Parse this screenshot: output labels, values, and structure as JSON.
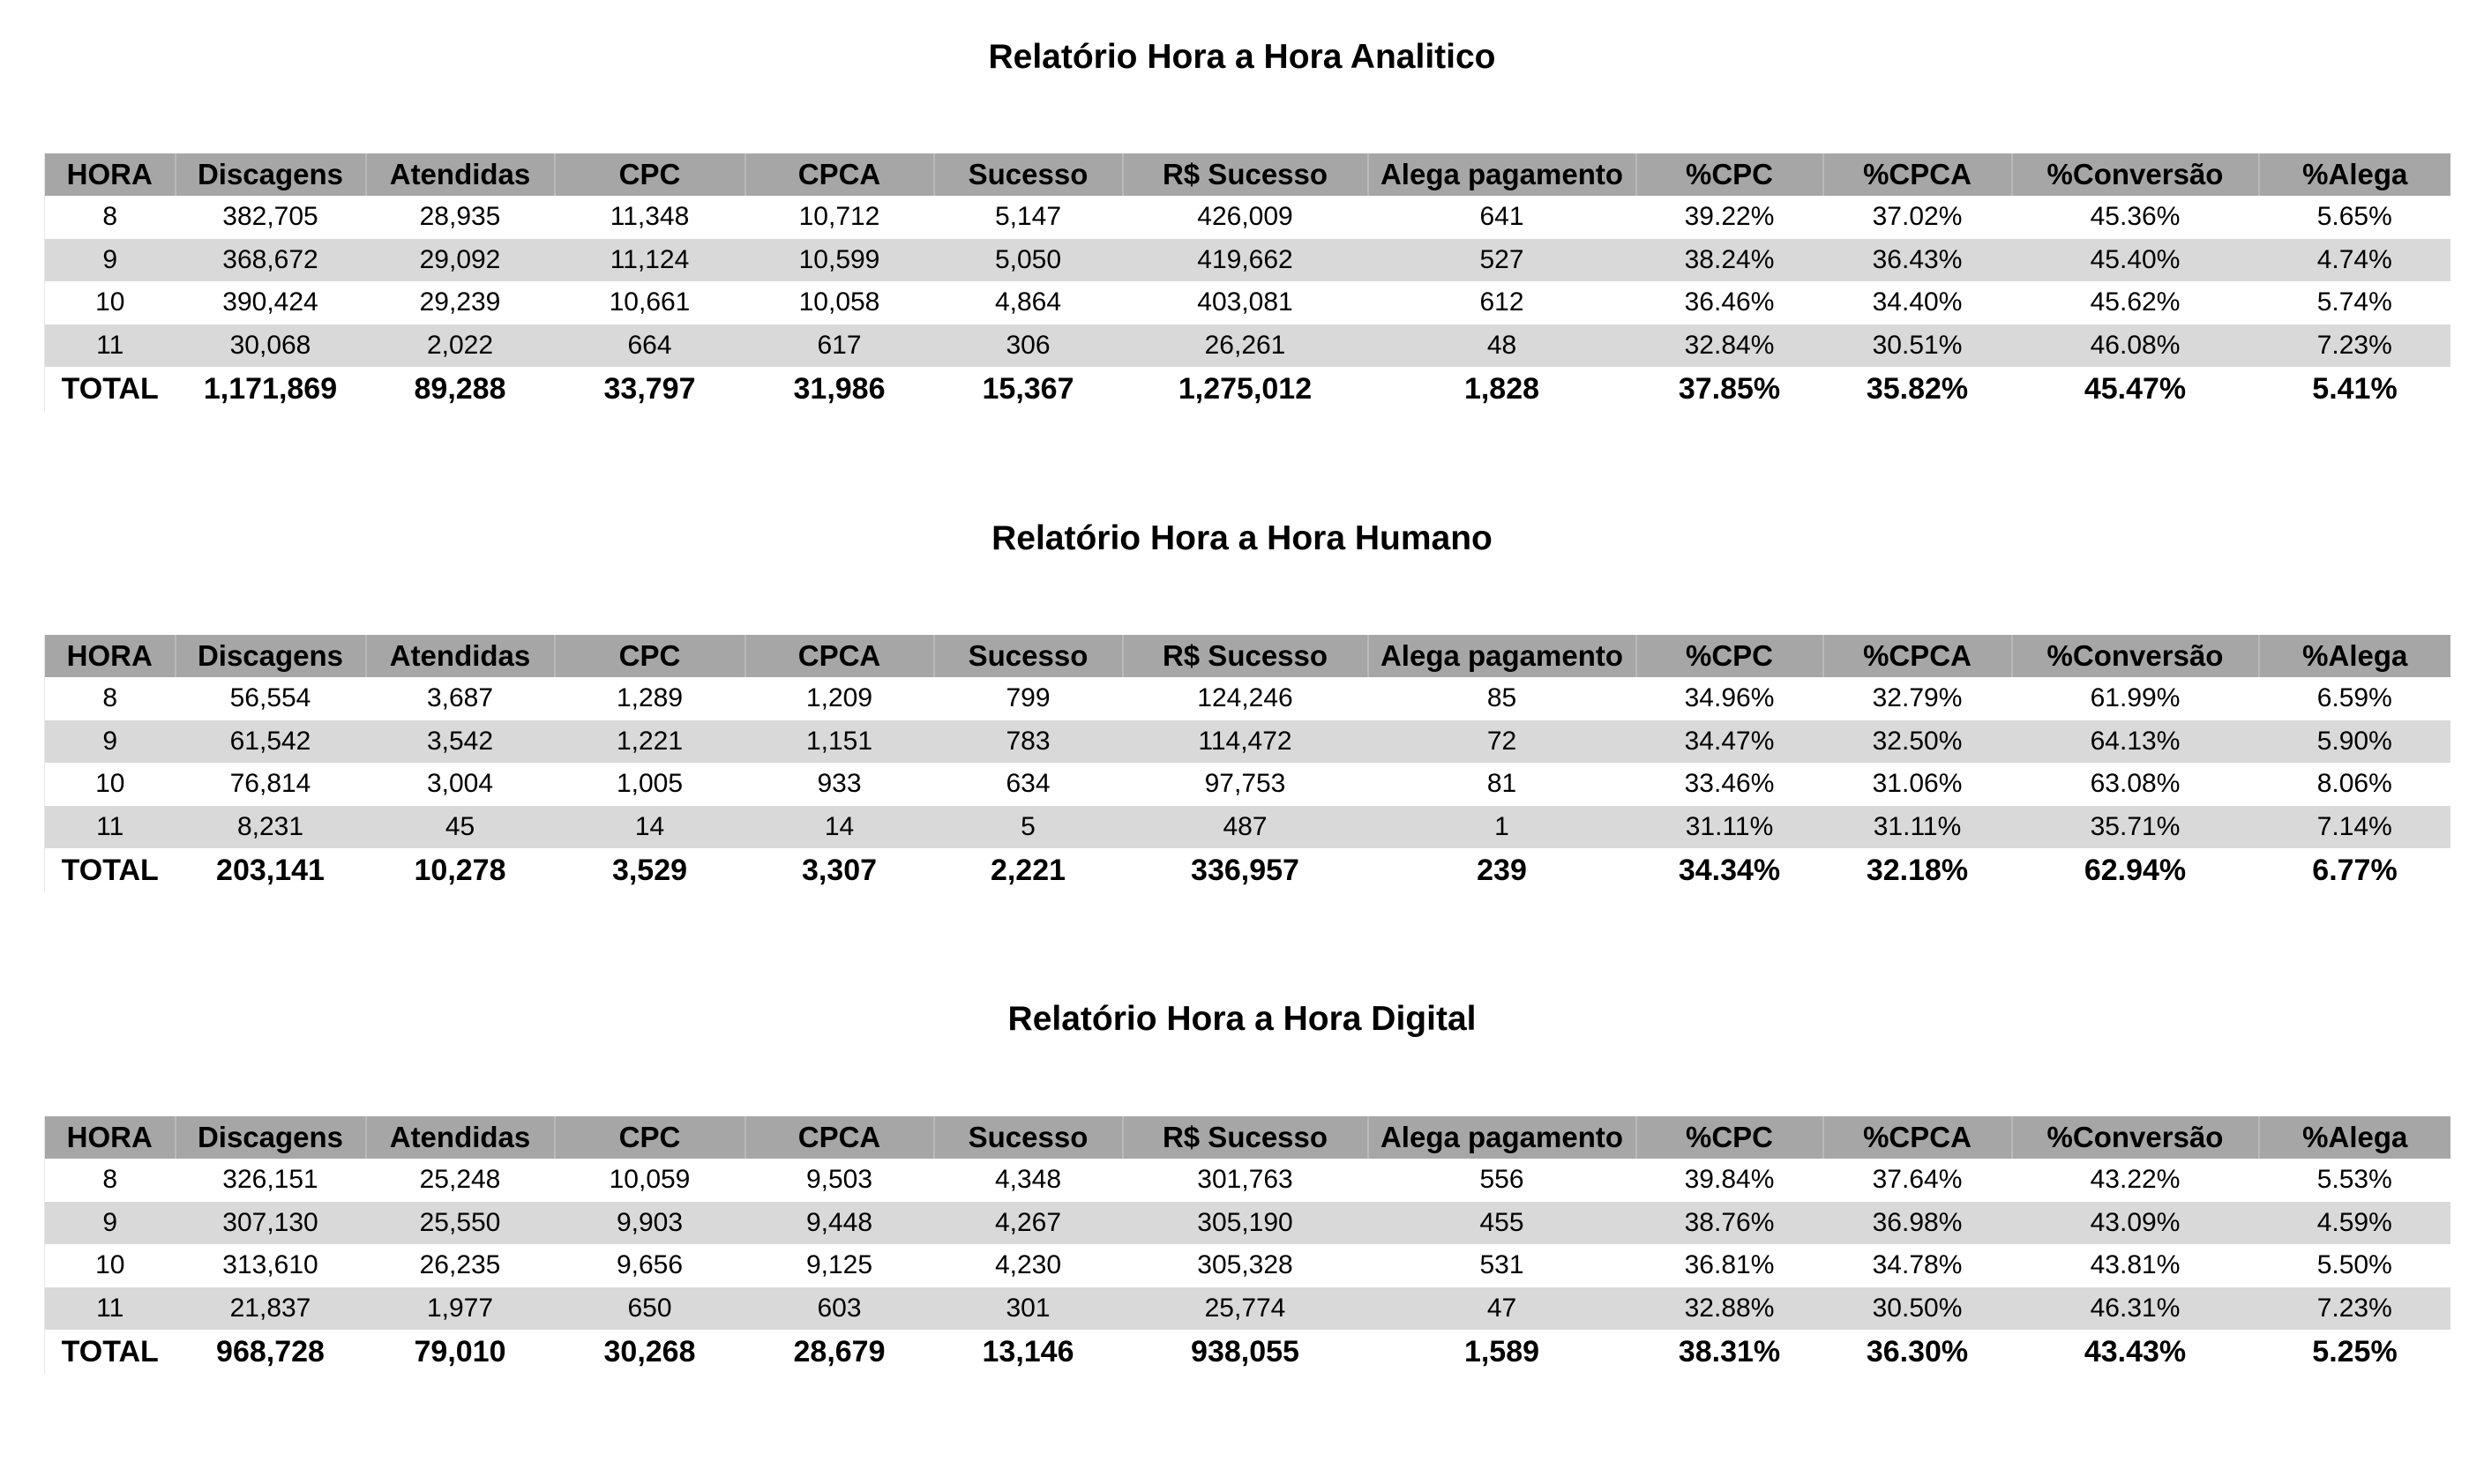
{
  "columns": [
    "HORA",
    "Discagens",
    "Atendidas",
    "CPC",
    "CPCA",
    "Sucesso",
    "R$ Sucesso",
    "Alega pagamento",
    "%CPC",
    "%CPCA",
    "%Conversão",
    "%Alega"
  ],
  "reports": [
    {
      "title": "Relatório Hora a Hora Analitico",
      "rows": [
        [
          "8",
          "382,705",
          "28,935",
          "11,348",
          "10,712",
          "5,147",
          "426,009",
          "641",
          "39.22%",
          "37.02%",
          "45.36%",
          "5.65%"
        ],
        [
          "9",
          "368,672",
          "29,092",
          "11,124",
          "10,599",
          "5,050",
          "419,662",
          "527",
          "38.24%",
          "36.43%",
          "45.40%",
          "4.74%"
        ],
        [
          "10",
          "390,424",
          "29,239",
          "10,661",
          "10,058",
          "4,864",
          "403,081",
          "612",
          "36.46%",
          "34.40%",
          "45.62%",
          "5.74%"
        ],
        [
          "11",
          "30,068",
          "2,022",
          "664",
          "617",
          "306",
          "26,261",
          "48",
          "32.84%",
          "30.51%",
          "46.08%",
          "7.23%"
        ]
      ],
      "total": [
        "TOTAL",
        "1,171,869",
        "89,288",
        "33,797",
        "31,986",
        "15,367",
        "1,275,012",
        "1,828",
        "37.85%",
        "35.82%",
        "45.47%",
        "5.41%"
      ]
    },
    {
      "title": "Relatório Hora a Hora Humano",
      "rows": [
        [
          "8",
          "56,554",
          "3,687",
          "1,289",
          "1,209",
          "799",
          "124,246",
          "85",
          "34.96%",
          "32.79%",
          "61.99%",
          "6.59%"
        ],
        [
          "9",
          "61,542",
          "3,542",
          "1,221",
          "1,151",
          "783",
          "114,472",
          "72",
          "34.47%",
          "32.50%",
          "64.13%",
          "5.90%"
        ],
        [
          "10",
          "76,814",
          "3,004",
          "1,005",
          "933",
          "634",
          "97,753",
          "81",
          "33.46%",
          "31.06%",
          "63.08%",
          "8.06%"
        ],
        [
          "11",
          "8,231",
          "45",
          "14",
          "14",
          "5",
          "487",
          "1",
          "31.11%",
          "31.11%",
          "35.71%",
          "7.14%"
        ]
      ],
      "total": [
        "TOTAL",
        "203,141",
        "10,278",
        "3,529",
        "3,307",
        "2,221",
        "336,957",
        "239",
        "34.34%",
        "32.18%",
        "62.94%",
        "6.77%"
      ]
    },
    {
      "title": "Relatório Hora a Hora Digital",
      "rows": [
        [
          "8",
          "326,151",
          "25,248",
          "10,059",
          "9,503",
          "4,348",
          "301,763",
          "556",
          "39.84%",
          "37.64%",
          "43.22%",
          "5.53%"
        ],
        [
          "9",
          "307,130",
          "25,550",
          "9,903",
          "9,448",
          "4,267",
          "305,190",
          "455",
          "38.76%",
          "36.98%",
          "43.09%",
          "4.59%"
        ],
        [
          "10",
          "313,610",
          "26,235",
          "9,656",
          "9,125",
          "4,230",
          "305,328",
          "531",
          "36.81%",
          "34.78%",
          "43.81%",
          "5.50%"
        ],
        [
          "11",
          "21,837",
          "1,977",
          "650",
          "603",
          "301",
          "25,774",
          "47",
          "32.88%",
          "30.50%",
          "46.31%",
          "7.23%"
        ]
      ],
      "total": [
        "TOTAL",
        "968,728",
        "79,010",
        "30,268",
        "28,679",
        "13,146",
        "938,055",
        "1,589",
        "38.31%",
        "36.30%",
        "43.43%",
        "5.25%"
      ]
    }
  ],
  "colors": {
    "header_bg": "#a6a6a6",
    "alt_row_bg": "#d9d9d9",
    "page_bg": "#ffffff"
  }
}
